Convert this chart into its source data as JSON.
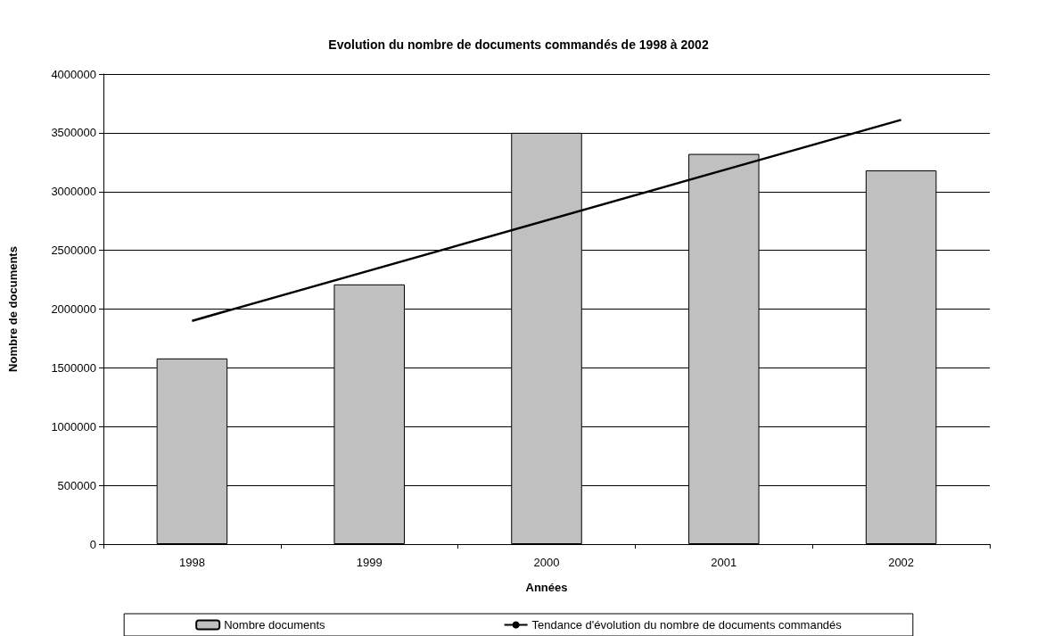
{
  "chart_data": {
    "type": "bar",
    "title": "Evolution du nombre de documents commandés de 1998 à 2002",
    "xlabel": "Années",
    "ylabel": "Nombre de documents",
    "categories": [
      "1998",
      "1999",
      "2000",
      "2001",
      "2002"
    ],
    "series": [
      {
        "name": "Nombre documents",
        "color": "#c0c0c0",
        "values": [
          1580000,
          2210000,
          3500000,
          3320000,
          3180000
        ]
      },
      {
        "name": "Tendance d'évolution du nombre de documents commandés",
        "type": "line",
        "color": "#000000",
        "values": [
          1900000,
          null,
          null,
          null,
          3610000
        ]
      }
    ],
    "ylim": [
      0,
      4000000
    ],
    "yticks": [
      0,
      500000,
      1000000,
      1500000,
      2000000,
      2500000,
      3000000,
      3500000,
      4000000
    ],
    "grid": "y",
    "legend": "bottom",
    "marker": "none",
    "line_style": "solid"
  }
}
